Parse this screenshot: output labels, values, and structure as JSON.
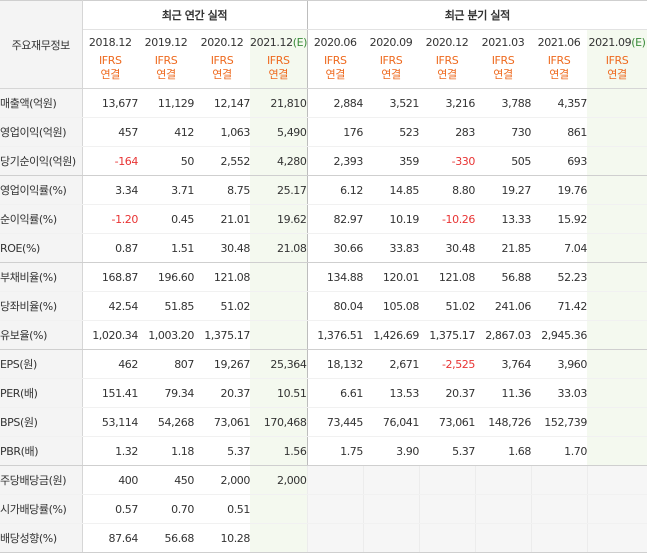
{
  "corner_label": "주요재무정보",
  "groups": {
    "annual": "최근 연간 실적",
    "quarter": "최근 분기 실적"
  },
  "periods": [
    {
      "label": "2018.12",
      "estimate": false,
      "ifrs": "IFRS",
      "basis": "연결"
    },
    {
      "label": "2019.12",
      "estimate": false,
      "ifrs": "IFRS",
      "basis": "연결"
    },
    {
      "label": "2020.12",
      "estimate": false,
      "ifrs": "IFRS",
      "basis": "연결"
    },
    {
      "label": "2021.12",
      "estimate": true,
      "est_mark": "(E)",
      "ifrs": "IFRS",
      "basis": "연결"
    },
    {
      "label": "2020.06",
      "estimate": false,
      "ifrs": "IFRS",
      "basis": "연결"
    },
    {
      "label": "2020.09",
      "estimate": false,
      "ifrs": "IFRS",
      "basis": "연결"
    },
    {
      "label": "2020.12",
      "estimate": false,
      "ifrs": "IFRS",
      "basis": "연결"
    },
    {
      "label": "2021.03",
      "estimate": false,
      "ifrs": "IFRS",
      "basis": "연결"
    },
    {
      "label": "2021.06",
      "estimate": false,
      "ifrs": "IFRS",
      "basis": "연결"
    },
    {
      "label": "2021.09",
      "estimate": true,
      "est_mark": "(E)",
      "ifrs": "IFRS",
      "basis": "연결"
    }
  ],
  "rows": [
    {
      "label": "매출액(억원)",
      "values": [
        "13,677",
        "11,129",
        "12,147",
        "21,810",
        "2,884",
        "3,521",
        "3,216",
        "3,788",
        "4,357",
        ""
      ]
    },
    {
      "label": "영업이익(억원)",
      "values": [
        "457",
        "412",
        "1,063",
        "5,490",
        "176",
        "523",
        "283",
        "730",
        "861",
        ""
      ]
    },
    {
      "label": "당기순이익(억원)",
      "values": [
        "-164",
        "50",
        "2,552",
        "4,280",
        "2,393",
        "359",
        "-330",
        "505",
        "693",
        ""
      ]
    },
    {
      "label": "영업이익률(%)",
      "values": [
        "3.34",
        "3.71",
        "8.75",
        "25.17",
        "6.12",
        "14.85",
        "8.80",
        "19.27",
        "19.76",
        ""
      ]
    },
    {
      "label": "순이익률(%)",
      "values": [
        "-1.20",
        "0.45",
        "21.01",
        "19.62",
        "82.97",
        "10.19",
        "-10.26",
        "13.33",
        "15.92",
        ""
      ]
    },
    {
      "label": "ROE(%)",
      "values": [
        "0.87",
        "1.51",
        "30.48",
        "21.08",
        "30.66",
        "33.83",
        "30.48",
        "21.85",
        "7.04",
        ""
      ]
    },
    {
      "label": "부채비율(%)",
      "values": [
        "168.87",
        "196.60",
        "121.08",
        "",
        "134.88",
        "120.01",
        "121.08",
        "56.88",
        "52.23",
        ""
      ]
    },
    {
      "label": "당좌비율(%)",
      "values": [
        "42.54",
        "51.85",
        "51.02",
        "",
        "80.04",
        "105.08",
        "51.02",
        "241.06",
        "71.42",
        ""
      ]
    },
    {
      "label": "유보율(%)",
      "values": [
        "1,020.34",
        "1,003.20",
        "1,375.17",
        "",
        "1,376.51",
        "1,426.69",
        "1,375.17",
        "2,867.03",
        "2,945.36",
        ""
      ]
    },
    {
      "label": "EPS(원)",
      "values": [
        "462",
        "807",
        "19,267",
        "25,364",
        "18,132",
        "2,671",
        "-2,525",
        "3,764",
        "3,960",
        ""
      ]
    },
    {
      "label": "PER(배)",
      "values": [
        "151.41",
        "79.34",
        "20.37",
        "10.51",
        "6.61",
        "13.53",
        "20.37",
        "11.36",
        "33.03",
        ""
      ]
    },
    {
      "label": "BPS(원)",
      "values": [
        "53,114",
        "54,268",
        "73,061",
        "170,468",
        "73,445",
        "76,041",
        "73,061",
        "148,726",
        "152,739",
        ""
      ]
    },
    {
      "label": "PBR(배)",
      "values": [
        "1.32",
        "1.18",
        "5.37",
        "1.56",
        "1.75",
        "3.90",
        "5.37",
        "1.68",
        "1.70",
        ""
      ]
    },
    {
      "label": "주당배당금(원)",
      "values": [
        "400",
        "450",
        "2,000",
        "2,000",
        "",
        "",
        "",
        "",
        "",
        ""
      ]
    },
    {
      "label": "시가배당률(%)",
      "values": [
        "0.57",
        "0.70",
        "0.51",
        "",
        "",
        "",
        "",
        "",
        "",
        ""
      ]
    },
    {
      "label": "배당성향(%)",
      "values": [
        "87.64",
        "56.68",
        "10.28",
        "",
        "",
        "",
        "",
        "",
        "",
        ""
      ]
    }
  ],
  "colors": {
    "negative": "#e83434",
    "ifrs": "#ee6a1f",
    "estimate_bg": "#f4f9ef",
    "estimate_mark": "#3b8c3b"
  }
}
